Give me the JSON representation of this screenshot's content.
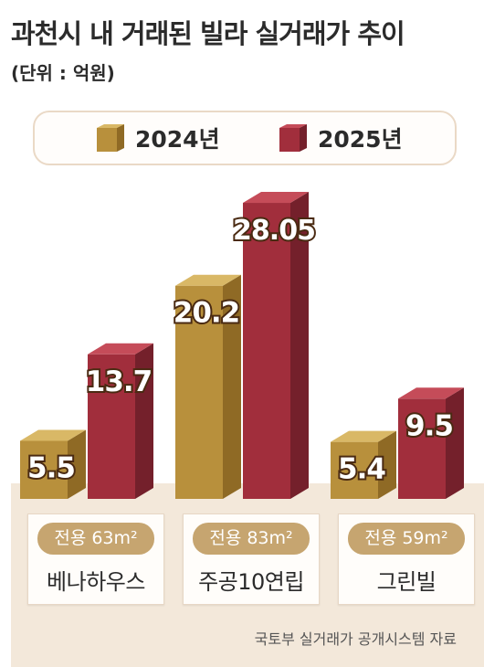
{
  "title": "과천시 내 거래된 빌라 실거래가 추이",
  "unit": "(단위 : 억원)",
  "source": "국토부 실거래가 공개시스템 자료",
  "colors": {
    "y2024": "#b8903c",
    "y2025": "#a12e3c",
    "floor": "#f3e8da",
    "pill": "#c6a570"
  },
  "chart_data": {
    "type": "bar",
    "title": "과천시 내 거래된 빌라 실거래가 추이",
    "unit": "억원",
    "categories": [
      "베나하우스",
      "주공10연립",
      "그린빌"
    ],
    "category_details": [
      "전용 63m²",
      "전용 83m²",
      "전용 59m²"
    ],
    "series": [
      {
        "name": "2024년",
        "values": [
          5.5,
          20.2,
          5.4
        ],
        "labels": [
          "5.5",
          "20.2",
          "5.4"
        ]
      },
      {
        "name": "2025년",
        "values": [
          13.7,
          28.05,
          9.5
        ],
        "labels": [
          "13.7",
          "28.05",
          "9.5"
        ]
      }
    ],
    "legend_position": "top",
    "grid": false
  }
}
